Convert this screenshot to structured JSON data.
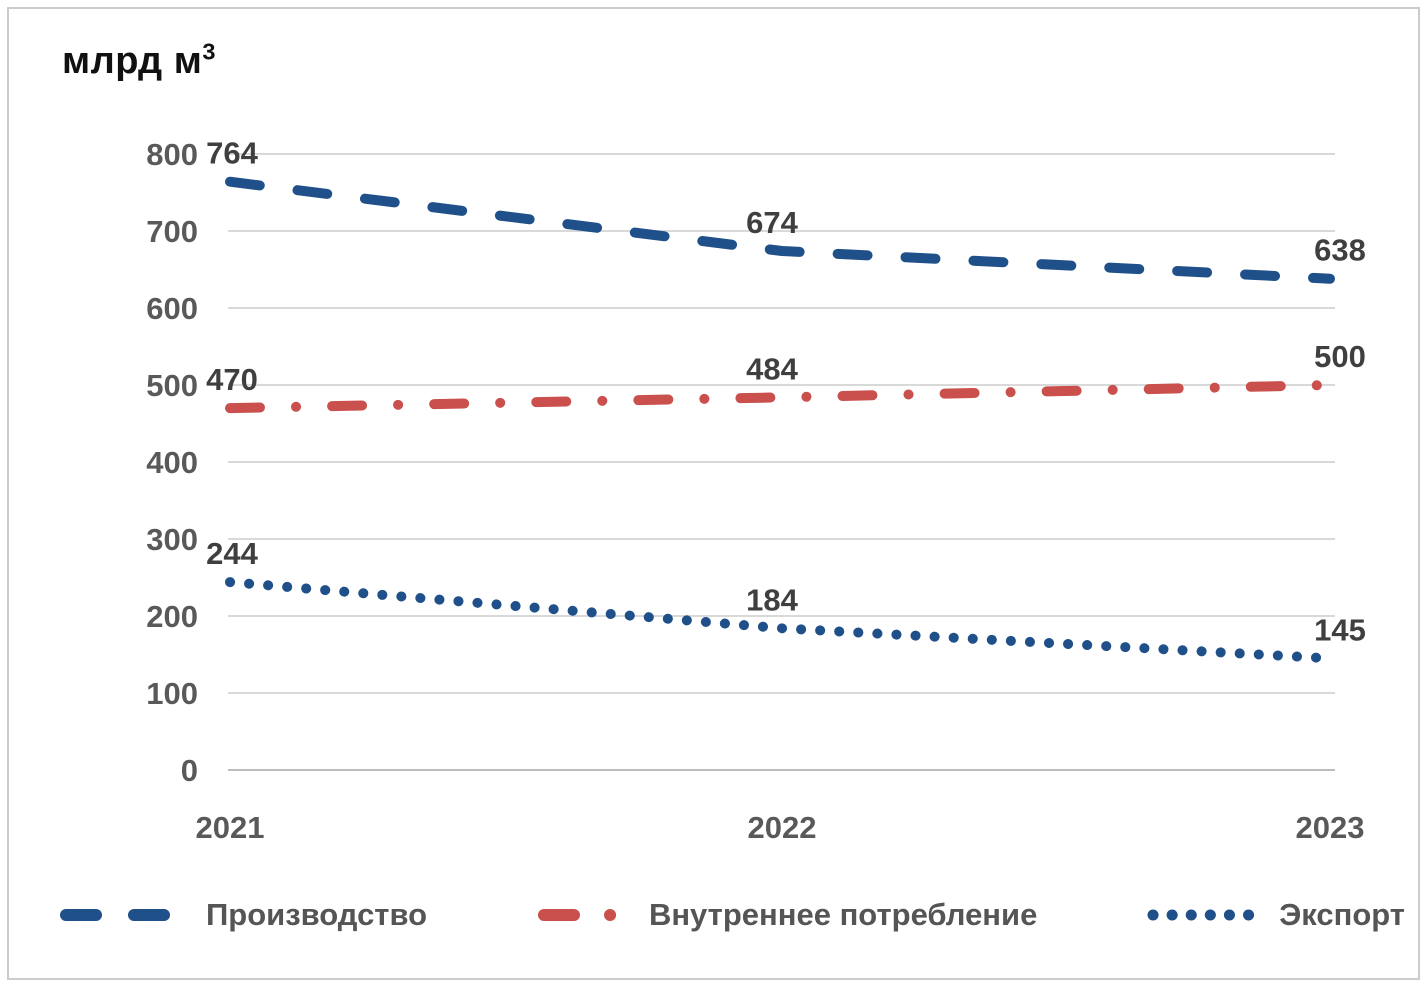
{
  "title": {
    "text": "млрд м",
    "superscript": "3",
    "full": "млрд м³"
  },
  "chart_data": {
    "type": "line",
    "title": "млрд м³",
    "ylabel": "млрд м³",
    "xlabel": "",
    "categories": [
      "2021",
      "2022",
      "2023"
    ],
    "series": [
      {
        "name": "Производство",
        "values": [
          764,
          674,
          638
        ],
        "color": "#1f5089",
        "line_style": "dashed"
      },
      {
        "name": "Внутреннее потребление",
        "values": [
          470,
          484,
          500
        ],
        "color": "#c9504c",
        "line_style": "dash-dot"
      },
      {
        "name": "Экспорт",
        "values": [
          244,
          184,
          145
        ],
        "color": "#1f5089",
        "line_style": "dotted"
      }
    ],
    "ylim": [
      0,
      800
    ],
    "ytick_step": 100,
    "yticks": [
      0,
      100,
      200,
      300,
      400,
      500,
      600,
      700,
      800
    ],
    "grid": true,
    "legend_position": "bottom",
    "data_labels_shown": true
  },
  "colors": {
    "production_blue": "#1f5089",
    "consumption_red": "#c9504c",
    "gridline": "#d9d9d9",
    "zero_line": "#bdbdbd",
    "axis_text": "#595959",
    "data_label_text": "#3f3f3f",
    "frame_border": "#cccccc",
    "background": "#ffffff"
  }
}
